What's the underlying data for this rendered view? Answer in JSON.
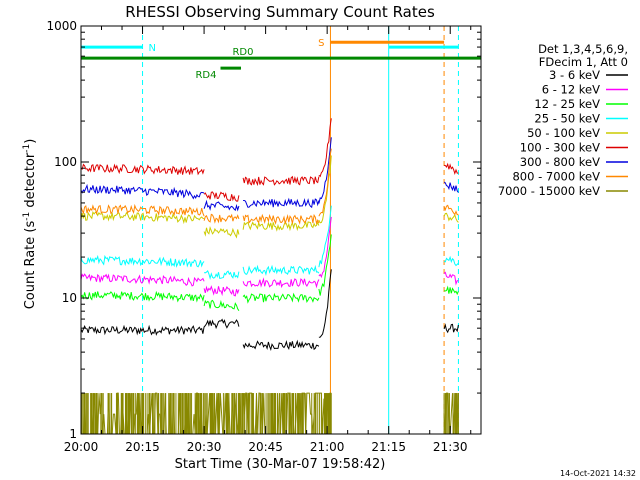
{
  "chart_data": {
    "type": "line",
    "title": "RHESSI Observing Summary Count Rates",
    "xlabel": "Start Time (30-Mar-07 19:58:42)",
    "ylabel_parts": [
      "Count Rate (s",
      "-1",
      " detector",
      "-1",
      ")"
    ],
    "y_scale": "log",
    "ylim": [
      1,
      1000
    ],
    "xlim_minutes": [
      0,
      97.5
    ],
    "x_ticks": [
      {
        "label": "20:00",
        "minute": 0
      },
      {
        "label": "20:15",
        "minute": 15
      },
      {
        "label": "20:30",
        "minute": 30
      },
      {
        "label": "20:45",
        "minute": 45
      },
      {
        "label": "21:00",
        "minute": 60
      },
      {
        "label": "21:15",
        "minute": 75
      },
      {
        "label": "21:30",
        "minute": 90
      }
    ],
    "y_ticks": [
      {
        "label": "1",
        "value": 1
      },
      {
        "label": "10",
        "value": 10
      },
      {
        "label": "100",
        "value": 100
      },
      {
        "label": "1000",
        "value": 1000
      }
    ],
    "legend": {
      "placement": "right",
      "header": [
        "Det 1,3,4,5,6,9,",
        "FDecim 1, Att 0"
      ]
    },
    "series": [
      {
        "name": "3 - 6 keV",
        "color": "#000000",
        "segments": [
          {
            "from": 0,
            "to": 30,
            "level": 5.8,
            "to_level": 5.8
          },
          {
            "from": 30,
            "to": 38.5,
            "level": 6.5,
            "to_level": 6.5
          },
          {
            "from": 39.5,
            "to": 58,
            "level": 4.5,
            "to_level": 4.5
          },
          {
            "from": 58,
            "to": 61,
            "level": 5,
            "to_level": 16
          },
          {
            "from": 88.5,
            "to": 92,
            "level": 6,
            "to_level": 6
          }
        ]
      },
      {
        "name": "6 - 12 keV",
        "color": "#ff00ff",
        "segments": [
          {
            "from": 0,
            "to": 30,
            "level": 14,
            "to_level": 13
          },
          {
            "from": 30,
            "to": 38.5,
            "level": 11.5,
            "to_level": 11
          },
          {
            "from": 39.5,
            "to": 58,
            "level": 13,
            "to_level": 13
          },
          {
            "from": 58,
            "to": 61,
            "level": 14,
            "to_level": 40
          },
          {
            "from": 88.5,
            "to": 92,
            "level": 14.5,
            "to_level": 13
          }
        ]
      },
      {
        "name": "12 - 25 keV",
        "color": "#00ff00",
        "segments": [
          {
            "from": 0,
            "to": 30,
            "level": 10.5,
            "to_level": 10
          },
          {
            "from": 30,
            "to": 38.5,
            "level": 9,
            "to_level": 8.5
          },
          {
            "from": 39.5,
            "to": 58,
            "level": 10,
            "to_level": 10
          },
          {
            "from": 58,
            "to": 61,
            "level": 11,
            "to_level": 30
          },
          {
            "from": 88.5,
            "to": 92,
            "level": 11.5,
            "to_level": 10.5
          }
        ]
      },
      {
        "name": "25 - 50 keV",
        "color": "#00ffff",
        "segments": [
          {
            "from": 0,
            "to": 30,
            "level": 19,
            "to_level": 18
          },
          {
            "from": 30,
            "to": 38.5,
            "level": 15,
            "to_level": 15
          },
          {
            "from": 39.5,
            "to": 58,
            "level": 16,
            "to_level": 16
          },
          {
            "from": 58,
            "to": 61,
            "level": 18,
            "to_level": 50
          },
          {
            "from": 88.5,
            "to": 92,
            "level": 19.5,
            "to_level": 18
          }
        ]
      },
      {
        "name": "50 - 100 keV",
        "color": "#cccc00",
        "segments": [
          {
            "from": 0,
            "to": 30,
            "level": 40,
            "to_level": 38
          },
          {
            "from": 30,
            "to": 38.5,
            "level": 31,
            "to_level": 30
          },
          {
            "from": 39.5,
            "to": 58,
            "level": 34,
            "to_level": 34
          },
          {
            "from": 58,
            "to": 61,
            "level": 36,
            "to_level": 110
          },
          {
            "from": 88.5,
            "to": 92,
            "level": 40,
            "to_level": 37
          }
        ]
      },
      {
        "name": "100 - 300 keV",
        "color": "#dd0000",
        "segments": [
          {
            "from": 0,
            "to": 30,
            "level": 90,
            "to_level": 85
          },
          {
            "from": 30,
            "to": 38.5,
            "level": 57,
            "to_level": 55
          },
          {
            "from": 39.5,
            "to": 58,
            "level": 73,
            "to_level": 73
          },
          {
            "from": 58,
            "to": 61,
            "level": 75,
            "to_level": 220
          },
          {
            "from": 88.5,
            "to": 92,
            "level": 95,
            "to_level": 82
          }
        ]
      },
      {
        "name": "300 - 800 keV",
        "color": "#0000dd",
        "segments": [
          {
            "from": 0,
            "to": 30,
            "level": 63,
            "to_level": 57
          },
          {
            "from": 30,
            "to": 38.5,
            "level": 48,
            "to_level": 45
          },
          {
            "from": 39.5,
            "to": 58,
            "level": 50,
            "to_level": 50
          },
          {
            "from": 58,
            "to": 61,
            "level": 52,
            "to_level": 160
          },
          {
            "from": 88.5,
            "to": 92,
            "level": 68,
            "to_level": 62
          }
        ]
      },
      {
        "name": "800 - 7000 keV",
        "color": "#ff8800",
        "segments": [
          {
            "from": 0,
            "to": 30,
            "level": 45,
            "to_level": 43
          },
          {
            "from": 30,
            "to": 38.5,
            "level": 39,
            "to_level": 38
          },
          {
            "from": 39.5,
            "to": 58,
            "level": 38,
            "to_level": 38
          },
          {
            "from": 58,
            "to": 61,
            "level": 40,
            "to_level": 130
          },
          {
            "from": 88.5,
            "to": 92,
            "level": 46,
            "to_level": 42
          }
        ]
      },
      {
        "name": "7000 - 15000 keV",
        "color": "#888800",
        "segments": [
          {
            "from": 0,
            "to": 58,
            "level": 1.4,
            "to_level": 1.4
          },
          {
            "from": 58,
            "to": 61,
            "level": 1.5,
            "to_level": 5
          },
          {
            "from": 88.5,
            "to": 92,
            "level": 1.4,
            "to_level": 1.4
          }
        ]
      }
    ],
    "state_bars": [
      {
        "name": "night",
        "label": "N",
        "color": "#00ffff",
        "ranges": [
          [
            0,
            15
          ],
          [
            75,
            92
          ]
        ],
        "level": 700
      },
      {
        "name": "saa",
        "label": "S",
        "color": "#ff8800",
        "ranges": [
          [
            60.8,
            88.5
          ]
        ],
        "level": 760
      },
      {
        "name": "rd0",
        "label": "RD0",
        "color": "#008800",
        "ranges": [
          [
            0,
            97.5
          ]
        ],
        "level": 580
      },
      {
        "name": "rd4",
        "label": "RD4",
        "color": "#008800",
        "ranges": [
          [
            34,
            39
          ]
        ],
        "level": 490
      }
    ],
    "vertical_markers": [
      {
        "minute": 0,
        "color": "#00ffff",
        "style": "solid"
      },
      {
        "minute": 15,
        "color": "#00ffff",
        "style": "dashed"
      },
      {
        "minute": 60.8,
        "color": "#ff8800",
        "style": "solid"
      },
      {
        "minute": 75,
        "color": "#00ffff",
        "style": "solid"
      },
      {
        "minute": 88.5,
        "color": "#ff8800",
        "style": "dashed"
      },
      {
        "minute": 92,
        "color": "#00ffff",
        "style": "dashed"
      }
    ],
    "footer_timestamp": "14-Oct-2021 14:32"
  }
}
